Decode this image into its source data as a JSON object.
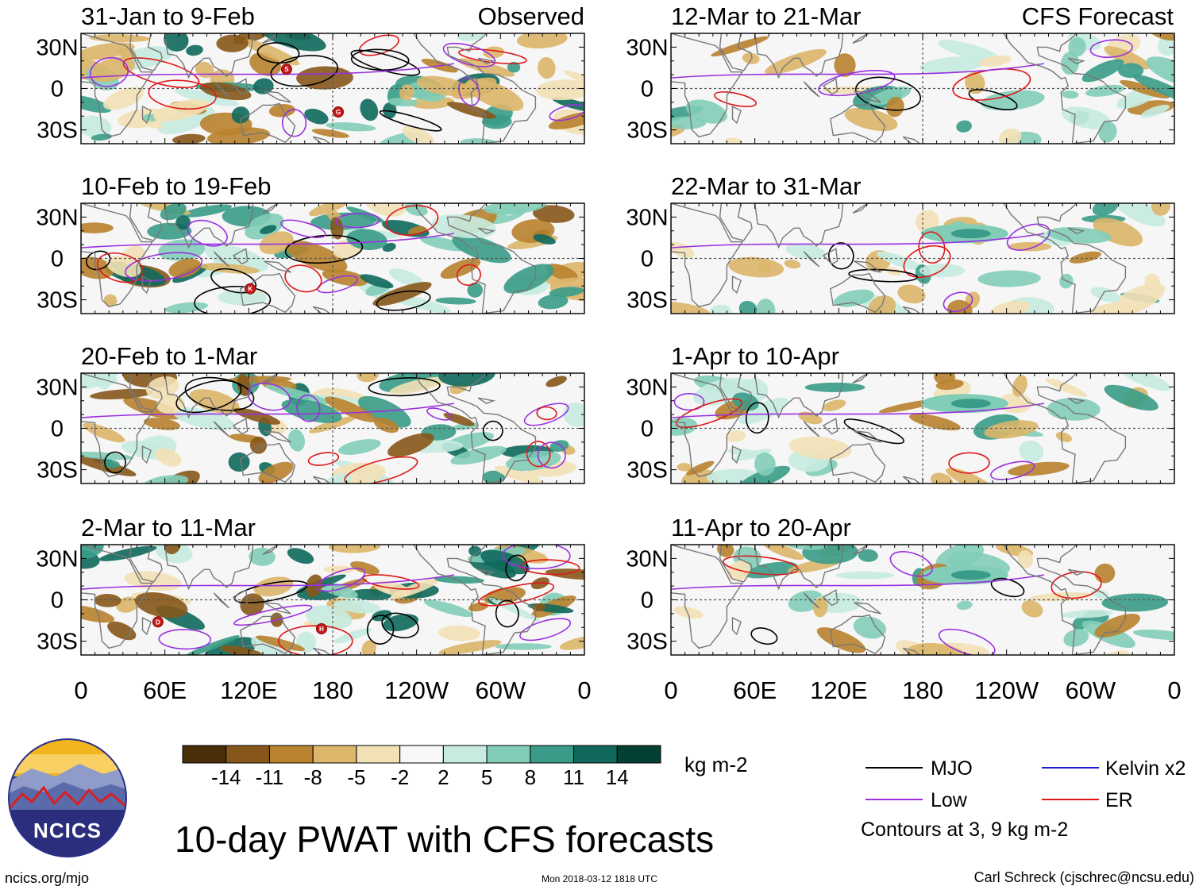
{
  "chart_data": {
    "type": "heatmap",
    "title": "10-day PWAT with CFS forecasts",
    "column_headers": {
      "left": "Observed",
      "right": "CFS Forecast"
    },
    "panels": [
      {
        "id": "p1",
        "title": "31-Jan to 9-Feb",
        "source": "observed"
      },
      {
        "id": "p2",
        "title": "10-Feb to 19-Feb",
        "source": "observed"
      },
      {
        "id": "p3",
        "title": "20-Feb to 1-Mar",
        "source": "observed"
      },
      {
        "id": "p4",
        "title": "2-Mar to 11-Mar",
        "source": "observed"
      },
      {
        "id": "p5",
        "title": "12-Mar to 21-Mar",
        "source": "forecast"
      },
      {
        "id": "p6",
        "title": "22-Mar to 31-Mar",
        "source": "forecast"
      },
      {
        "id": "p7",
        "title": "1-Apr to 10-Apr",
        "source": "forecast"
      },
      {
        "id": "p8",
        "title": "11-Apr to 20-Apr",
        "source": "forecast"
      }
    ],
    "y_ticks": [
      "30N",
      "0",
      "30S"
    ],
    "y_values": [
      30,
      0,
      -30
    ],
    "ylim": [
      -40,
      40
    ],
    "x_ticks": [
      "0",
      "60E",
      "120E",
      "180",
      "120W",
      "60W",
      "0"
    ],
    "x_values": [
      0,
      60,
      120,
      180,
      240,
      300,
      360
    ],
    "xlim": [
      0,
      360
    ],
    "colorbar": {
      "units": "kg m-2",
      "ticks": [
        "-14",
        "-11",
        "-8",
        "-5",
        "-2",
        "2",
        "5",
        "8",
        "11",
        "14"
      ],
      "colors": [
        "#4a2e0a",
        "#86561a",
        "#b8822e",
        "#dcb66a",
        "#f3e1b6",
        "#f8f8f8",
        "#c6ebe0",
        "#82cdb8",
        "#3a9c88",
        "#10695c",
        "#043f34"
      ]
    },
    "legend": [
      {
        "name": "MJO",
        "color": "#000000"
      },
      {
        "name": "Kelvin x2",
        "color": "#1a1ad0"
      },
      {
        "name": "Low",
        "color": "#9a30e0"
      },
      {
        "name": "ER",
        "color": "#e01818"
      }
    ],
    "contour_note": "Contours at 3, 9 kg m-2",
    "storm_markers": [
      {
        "panel": "p1",
        "label": "S",
        "lon": 147,
        "lat": 14
      },
      {
        "panel": "p1",
        "label": "G",
        "lon": 184,
        "lat": -17
      },
      {
        "panel": "p2",
        "label": "K",
        "lon": 121,
        "lat": -22
      },
      {
        "panel": "p4",
        "label": "D",
        "lon": 55,
        "lat": -16
      },
      {
        "panel": "p4",
        "label": "H",
        "lon": 172,
        "lat": -21
      }
    ]
  },
  "footer": {
    "logo_text": "NCICS",
    "url": "ncics.org/mjo",
    "timestamp": "Mon 2018-03-12 1818 UTC",
    "credit": "Carl Schreck (cjschrec@ncsu.edu)"
  }
}
